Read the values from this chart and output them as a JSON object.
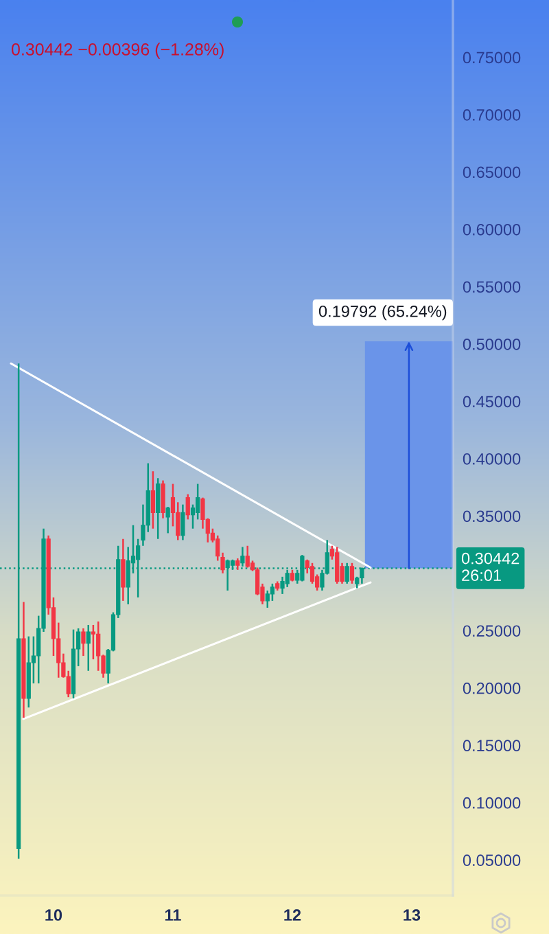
{
  "chart_data": {
    "type": "candlestick",
    "subtitle": "0.30442 −0.00396 (−1.28%)",
    "x": [
      9.708,
      9.75,
      9.792,
      9.833,
      9.875,
      9.917,
      9.958,
      10.0,
      10.042,
      10.083,
      10.125,
      10.167,
      10.208,
      10.25,
      10.292,
      10.333,
      10.375,
      10.417,
      10.458,
      10.5,
      10.542,
      10.583,
      10.625,
      10.667,
      10.708,
      10.75,
      10.792,
      10.833,
      10.875,
      10.917,
      10.958,
      11.0,
      11.042,
      11.083,
      11.125,
      11.167,
      11.208,
      11.25,
      11.292,
      11.333,
      11.375,
      11.417,
      11.458,
      11.5,
      11.542,
      11.583,
      11.625,
      11.667,
      11.708,
      11.75,
      11.792,
      11.833,
      11.875,
      11.917,
      11.958,
      12.0,
      12.042,
      12.083,
      12.125,
      12.167,
      12.208,
      12.25,
      12.292,
      12.333,
      12.375,
      12.417,
      12.458,
      12.5,
      12.542,
      12.583
    ],
    "ohlc": [
      [
        0.06,
        0.483,
        0.051,
        0.243
      ],
      [
        0.243,
        0.275,
        0.174,
        0.191
      ],
      [
        0.191,
        0.245,
        0.183,
        0.222
      ],
      [
        0.222,
        0.245,
        0.204,
        0.228
      ],
      [
        0.228,
        0.263,
        0.204,
        0.252
      ],
      [
        0.252,
        0.339,
        0.249,
        0.33
      ],
      [
        0.33,
        0.333,
        0.264,
        0.27
      ],
      [
        0.27,
        0.279,
        0.228,
        0.243
      ],
      [
        0.243,
        0.257,
        0.209,
        0.222
      ],
      [
        0.222,
        0.23,
        0.209,
        0.21
      ],
      [
        0.21,
        0.215,
        0.192,
        0.195
      ],
      [
        0.195,
        0.251,
        0.191,
        0.234
      ],
      [
        0.234,
        0.252,
        0.219,
        0.249
      ],
      [
        0.249,
        0.252,
        0.228,
        0.239
      ],
      [
        0.239,
        0.255,
        0.215,
        0.249
      ],
      [
        0.249,
        0.255,
        0.225,
        0.247
      ],
      [
        0.247,
        0.258,
        0.215,
        0.228
      ],
      [
        0.228,
        0.229,
        0.209,
        0.213
      ],
      [
        0.213,
        0.234,
        0.204,
        0.233
      ],
      [
        0.233,
        0.266,
        0.232,
        0.264
      ],
      [
        0.264,
        0.324,
        0.261,
        0.312
      ],
      [
        0.312,
        0.33,
        0.276,
        0.288
      ],
      [
        0.288,
        0.323,
        0.273,
        0.311
      ],
      [
        0.309,
        0.342,
        0.3,
        0.315
      ],
      [
        0.312,
        0.33,
        0.279,
        0.324
      ],
      [
        0.329,
        0.36,
        0.324,
        0.342
      ],
      [
        0.342,
        0.396,
        0.336,
        0.372
      ],
      [
        0.372,
        0.389,
        0.339,
        0.353
      ],
      [
        0.353,
        0.383,
        0.33,
        0.378
      ],
      [
        0.378,
        0.381,
        0.348,
        0.353
      ],
      [
        0.349,
        0.358,
        0.335,
        0.357
      ],
      [
        0.366,
        0.378,
        0.341,
        0.353
      ],
      [
        0.353,
        0.362,
        0.329,
        0.333
      ],
      [
        0.333,
        0.36,
        0.329,
        0.353
      ],
      [
        0.366,
        0.369,
        0.347,
        0.351
      ],
      [
        0.351,
        0.36,
        0.339,
        0.357
      ],
      [
        0.353,
        0.378,
        0.347,
        0.366
      ],
      [
        0.365,
        0.366,
        0.339,
        0.347
      ],
      [
        0.347,
        0.348,
        0.327,
        0.335
      ],
      [
        0.335,
        0.339,
        0.327,
        0.329
      ],
      [
        0.33,
        0.333,
        0.311,
        0.315
      ],
      [
        0.314,
        0.318,
        0.3,
        0.303
      ],
      [
        0.305,
        0.312,
        0.285,
        0.311
      ],
      [
        0.307,
        0.312,
        0.303,
        0.311
      ],
      [
        0.311,
        0.313,
        0.303,
        0.307
      ],
      [
        0.309,
        0.323,
        0.306,
        0.315
      ],
      [
        0.315,
        0.324,
        0.305,
        0.306
      ],
      [
        0.309,
        0.311,
        0.302,
        0.303
      ],
      [
        0.303,
        0.305,
        0.281,
        0.282
      ],
      [
        0.288,
        0.291,
        0.273,
        0.276
      ],
      [
        0.276,
        0.285,
        0.27,
        0.282
      ],
      [
        0.282,
        0.291,
        0.276,
        0.288
      ],
      [
        0.291,
        0.293,
        0.285,
        0.287
      ],
      [
        0.287,
        0.297,
        0.282,
        0.293
      ],
      [
        0.291,
        0.303,
        0.288,
        0.3
      ],
      [
        0.3,
        0.303,
        0.293,
        0.294
      ],
      [
        0.294,
        0.303,
        0.291,
        0.3
      ],
      [
        0.294,
        0.316,
        0.293,
        0.315
      ],
      [
        0.311,
        0.312,
        0.3,
        0.305
      ],
      [
        0.306,
        0.309,
        0.291,
        0.293
      ],
      [
        0.297,
        0.299,
        0.285,
        0.288
      ],
      [
        0.288,
        0.303,
        0.285,
        0.3
      ],
      [
        0.3,
        0.329,
        0.299,
        0.318
      ],
      [
        0.321,
        0.324,
        0.312,
        0.315
      ],
      [
        0.318,
        0.323,
        0.291,
        0.293
      ],
      [
        0.306,
        0.309,
        0.291,
        0.293
      ],
      [
        0.293,
        0.309,
        0.291,
        0.306
      ],
      [
        0.306,
        0.309,
        0.291,
        0.294
      ],
      [
        0.291,
        0.297,
        0.287,
        0.296
      ],
      [
        0.296,
        0.305,
        0.291,
        0.30442
      ]
    ],
    "colors": [
      "#089981",
      "#f23645",
      "#089981",
      "#089981",
      "#089981",
      "#089981",
      "#f23645",
      "#f23645",
      "#f23645",
      "#f23645",
      "#f23645",
      "#089981",
      "#089981",
      "#f23645",
      "#089981",
      "#f23645",
      "#f23645",
      "#f23645",
      "#089981",
      "#089981",
      "#089981",
      "#f23645",
      "#089981",
      "#089981",
      "#089981",
      "#089981",
      "#089981",
      "#f23645",
      "#089981",
      "#f23645",
      "#089981",
      "#f23645",
      "#f23645",
      "#089981",
      "#f23645",
      "#089981",
      "#089981",
      "#f23645",
      "#f23645",
      "#f23645",
      "#f23645",
      "#f23645",
      "#089981",
      "#089981",
      "#f23645",
      "#089981",
      "#f23645",
      "#f23645",
      "#f23645",
      "#f23645",
      "#089981",
      "#089981",
      "#f23645",
      "#089981",
      "#089981",
      "#f23645",
      "#089981",
      "#089981",
      "#f23645",
      "#f23645",
      "#f23645",
      "#089981",
      "#089981",
      "#f23645",
      "#f23645",
      "#f23645",
      "#089981",
      "#f23645",
      "#089981",
      "#089981"
    ],
    "series": [
      {
        "type": "line",
        "x": [
          9.644,
          12.655
        ],
        "values": [
          0.483,
          0.305
        ],
        "color": "#ffffff"
      },
      {
        "type": "line",
        "x": [
          9.747,
          12.655
        ],
        "values": [
          0.173,
          0.292
        ],
        "color": "#ffffff"
      }
    ],
    "ref_lines": [
      {
        "axis": "y",
        "value": 0.30442,
        "label": "0.30442\n26:01",
        "color": "#089981",
        "line_style": "dotted"
      }
    ],
    "bands": [
      {
        "axis": "y",
        "from": 0.30442,
        "to": 0.50234,
        "label": "0.19792 (65.24%)",
        "color": "#6a94e9"
      }
    ],
    "xlim": [
      9.552,
      13.345
    ],
    "xticks": [
      10,
      11,
      12,
      13
    ],
    "ylim": [
      0.019,
      0.8
    ],
    "yticks": [
      {
        "value": 0.05,
        "label": "0.05000"
      },
      {
        "value": 0.1,
        "label": "0.10000"
      },
      {
        "value": 0.15,
        "label": "0.15000"
      },
      {
        "value": 0.2,
        "label": "0.20000"
      },
      {
        "value": 0.25,
        "label": "0.25000"
      },
      {
        "value": 0.35,
        "label": "0.35000"
      },
      {
        "value": 0.4,
        "label": "0.40000"
      },
      {
        "value": 0.45,
        "label": "0.45000"
      },
      {
        "value": 0.5,
        "label": "0.50000"
      },
      {
        "value": 0.55,
        "label": "0.55000"
      },
      {
        "value": 0.6,
        "label": "0.60000"
      },
      {
        "value": 0.65,
        "label": "0.65000"
      },
      {
        "value": 0.7,
        "label": "0.70000"
      },
      {
        "value": 0.75,
        "label": "0.75000"
      }
    ],
    "marker": "none",
    "line_style": "solid"
  }
}
